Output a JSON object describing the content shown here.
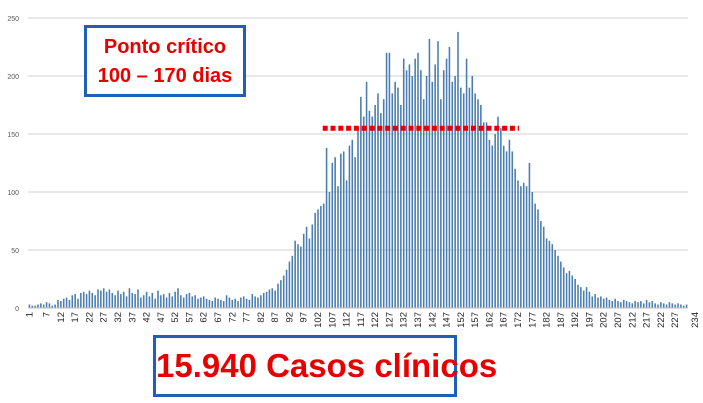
{
  "annotations": {
    "critical_title": "Ponto crítico",
    "critical_range": "100 – 170 dias",
    "cases": "15.940 Casos clínicos"
  },
  "colors": {
    "bars": "#4a7eb0",
    "marker": "#e60000",
    "box_border": "#1f5fb5",
    "grid": "#d0d0d0"
  },
  "chart_data": {
    "type": "bar",
    "title": "",
    "xlabel": "",
    "ylabel": "",
    "ylim": [
      0,
      250
    ],
    "yticks": [
      0,
      50,
      100,
      150,
      200,
      250
    ],
    "grid": true,
    "x_start": 1,
    "x_tick_labels": [
      1,
      7,
      12,
      17,
      22,
      27,
      32,
      37,
      42,
      47,
      52,
      57,
      62,
      67,
      72,
      77,
      82,
      87,
      92,
      97,
      102,
      107,
      112,
      117,
      122,
      127,
      132,
      137,
      142,
      147,
      152,
      157,
      162,
      167,
      172,
      177,
      182,
      187,
      192,
      197,
      202,
      207,
      212,
      217,
      222,
      227,
      234
    ],
    "values": [
      3,
      2,
      2,
      3,
      4,
      3,
      5,
      4,
      2,
      3,
      7,
      6,
      8,
      9,
      7,
      11,
      12,
      8,
      13,
      14,
      12,
      15,
      13,
      11,
      16,
      15,
      17,
      14,
      16,
      13,
      11,
      15,
      12,
      14,
      10,
      17,
      13,
      12,
      16,
      9,
      11,
      14,
      10,
      13,
      8,
      15,
      11,
      12,
      9,
      13,
      10,
      14,
      17,
      11,
      9,
      12,
      13,
      10,
      11,
      8,
      9,
      10,
      8,
      7,
      6,
      9,
      8,
      7,
      6,
      11,
      9,
      7,
      8,
      6,
      9,
      10,
      8,
      7,
      12,
      10,
      9,
      11,
      13,
      14,
      16,
      17,
      15,
      21,
      24,
      28,
      33,
      40,
      45,
      58,
      55,
      53,
      64,
      70,
      60,
      72,
      82,
      85,
      88,
      90,
      138,
      100,
      125,
      130,
      105,
      133,
      135,
      110,
      140,
      145,
      130,
      155,
      182,
      165,
      195,
      170,
      165,
      175,
      185,
      168,
      180,
      220,
      220,
      185,
      195,
      190,
      175,
      215,
      205,
      210,
      200,
      215,
      220,
      205,
      180,
      200,
      232,
      195,
      210,
      230,
      180,
      205,
      215,
      225,
      195,
      200,
      238,
      190,
      185,
      215,
      190,
      200,
      185,
      180,
      175,
      160,
      160,
      145,
      140,
      150,
      165,
      155,
      140,
      135,
      145,
      135,
      120,
      110,
      105,
      108,
      105,
      125,
      100,
      90,
      85,
      75,
      70,
      60,
      58,
      55,
      50,
      45,
      40,
      35,
      30,
      32,
      28,
      25,
      20,
      18,
      15,
      18,
      14,
      10,
      12,
      9,
      10,
      8,
      9,
      7,
      6,
      8,
      6,
      5,
      7,
      6,
      5,
      4,
      6,
      5,
      6,
      4,
      7,
      5,
      6,
      4,
      3,
      5,
      4,
      3,
      5,
      4,
      3,
      4,
      3,
      2,
      3
    ],
    "marker": {
      "style": "dashed",
      "x_from": 104,
      "x_to": 172,
      "y": 155
    }
  }
}
